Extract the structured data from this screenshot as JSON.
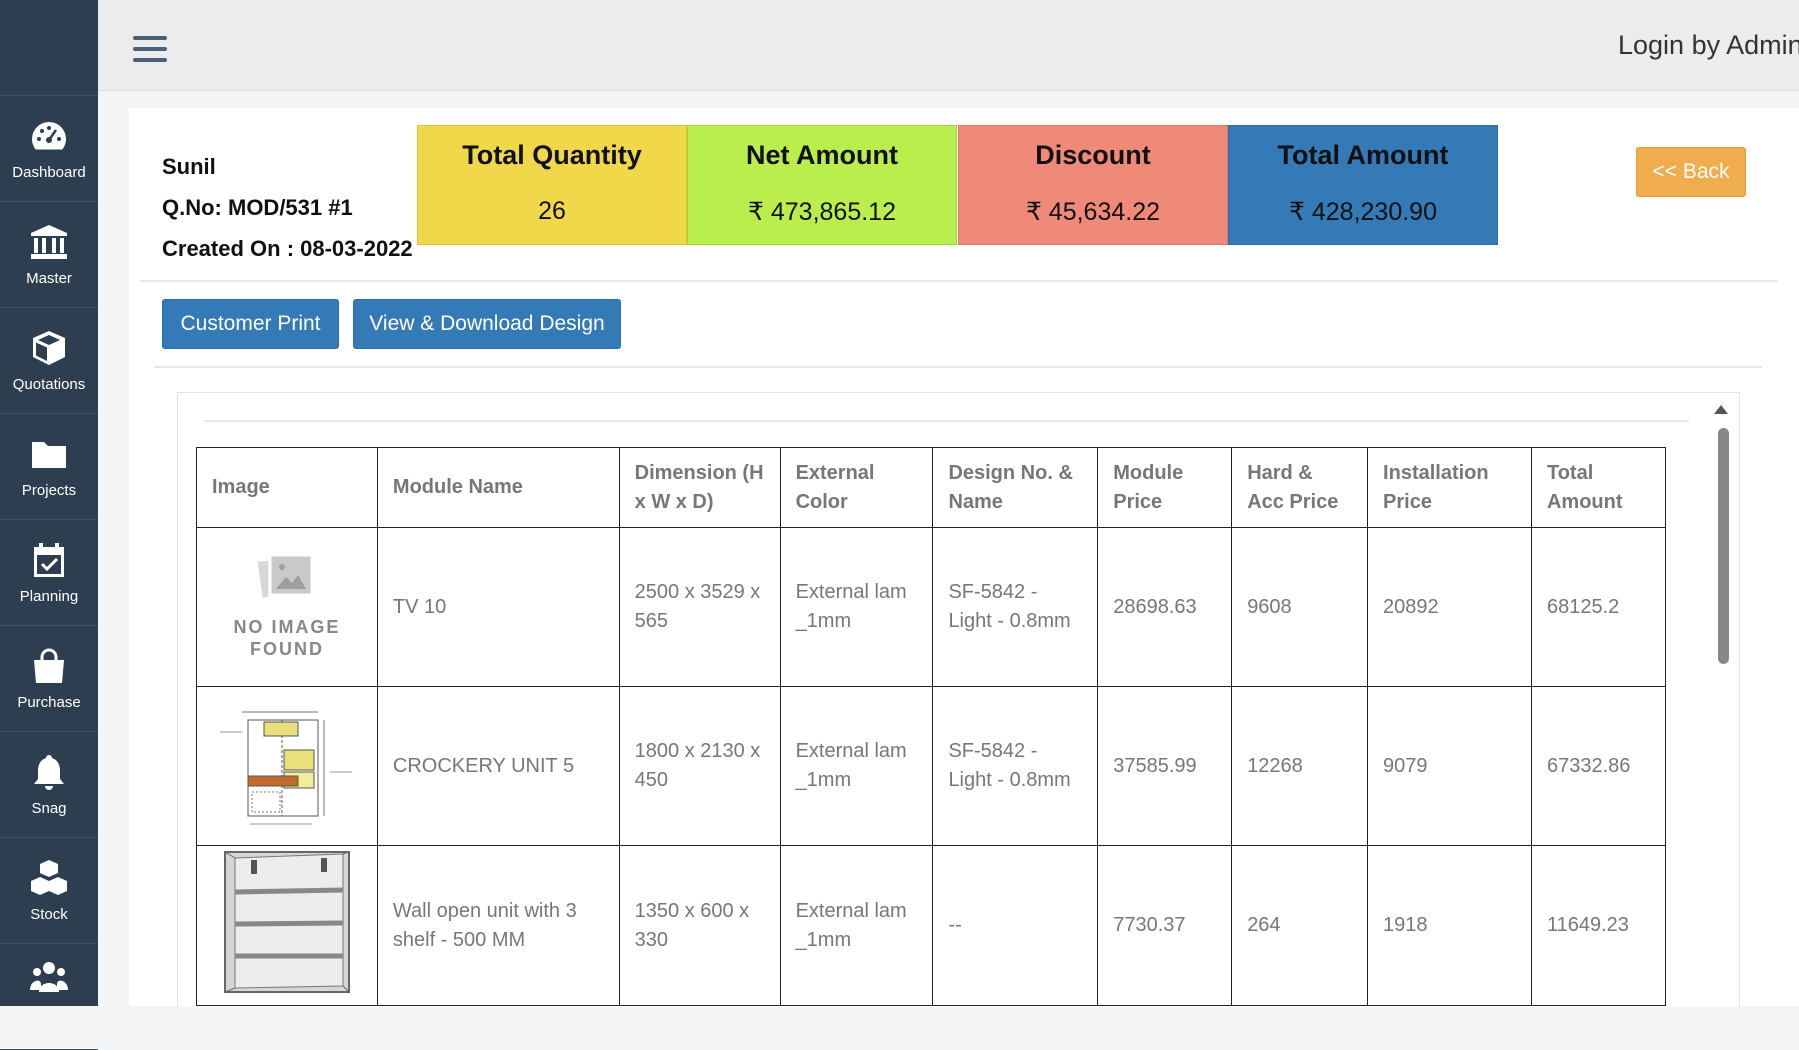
{
  "sidebar": {
    "items": [
      {
        "label": "Dashboard",
        "icon": "dashboard-icon"
      },
      {
        "label": "Master",
        "icon": "bank-icon"
      },
      {
        "label": "Quotations",
        "icon": "cube-icon"
      },
      {
        "label": "Projects",
        "icon": "folder-icon"
      },
      {
        "label": "Planning",
        "icon": "calendar-check-icon"
      },
      {
        "label": "Purchase",
        "icon": "shopping-bag-icon"
      },
      {
        "label": "Snag",
        "icon": "bell-icon"
      },
      {
        "label": "Stock",
        "icon": "cubes-icon"
      },
      {
        "label": "",
        "icon": "users-icon"
      }
    ]
  },
  "header": {
    "login_text": "Login by Admin"
  },
  "quotation": {
    "customer": "Sunil",
    "qno": "Q.No: MOD/531 #1",
    "created": "Created On : 08-03-2022"
  },
  "cards": [
    {
      "title": "Total Quantity",
      "value": "26",
      "color": "#f0d84a"
    },
    {
      "title": "Net Amount",
      "value": "₹ 473,865.12",
      "color": "#b9ee4c"
    },
    {
      "title": "Discount",
      "value": "₹ 45,634.22",
      "color": "#f08a78"
    },
    {
      "title": "Total Amount",
      "value": "₹ 428,230.90",
      "color": "#337ab7"
    }
  ],
  "buttons": {
    "back": "<< Back",
    "customer_print": "Customer Print",
    "view_download": "View & Download Design"
  },
  "table": {
    "headers": [
      "Image",
      "Module Name",
      "Dimension (H x W x D)",
      "External Color",
      "Design No. & Name",
      "Module Price",
      "Hard & Acc Price",
      "Installation Price",
      "Total Amount"
    ],
    "no_image_text": "NO IMAGE FOUND",
    "rows": [
      {
        "image": "no-image",
        "module": "TV 10",
        "dimension": "2500 x 3529 x 565",
        "color": "External lam _1mm",
        "design": "SF-5842 - Light - 0.8mm",
        "module_price": "28698.63",
        "hard_price": "9608",
        "install_price": "20892",
        "total": "68125.2"
      },
      {
        "image": "crockery-drawing",
        "module": "CROCKERY UNIT 5",
        "dimension": "1800 x 2130 x 450",
        "color": "External lam _1mm",
        "design": "SF-5842 - Light - 0.8mm",
        "module_price": "37585.99",
        "hard_price": "12268",
        "install_price": "9079",
        "total": "67332.86"
      },
      {
        "image": "wall-unit-render",
        "module": "Wall open unit with 3 shelf - 500 MM",
        "dimension": "1350 x 600 x 330",
        "color": "External lam _1mm",
        "design": "--",
        "module_price": "7730.37",
        "hard_price": "264",
        "install_price": "1918",
        "total": "11649.23"
      }
    ]
  }
}
